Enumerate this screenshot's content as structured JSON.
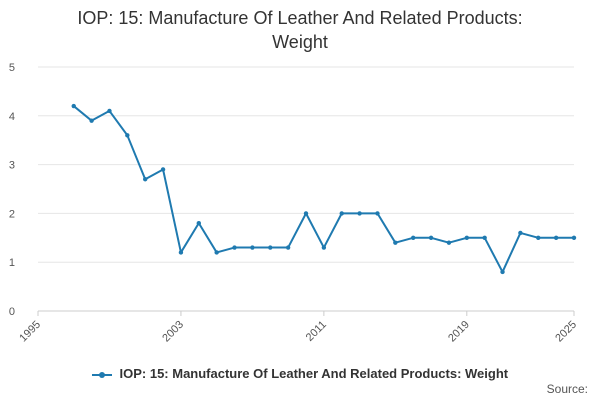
{
  "chart_data": {
    "type": "line",
    "title_lines": [
      "IOP: 15: Manufacture Of Leather And Related Products:",
      "Weight"
    ],
    "xlabel": "",
    "ylabel": "",
    "xlim": [
      1995,
      2025
    ],
    "ylim": [
      0,
      5
    ],
    "x_ticks": [
      "1995",
      "2003",
      "2011",
      "2019",
      "2025"
    ],
    "y_ticks": [
      "0",
      "1",
      "2",
      "3",
      "4",
      "5"
    ],
    "grid": true,
    "legend_position": "bottom",
    "series": [
      {
        "name": "IOP: 15: Manufacture Of Leather And Related Products: Weight",
        "color": "#1f7ab0",
        "x": [
          1997,
          1998,
          1999,
          2000,
          2001,
          2002,
          2003,
          2004,
          2005,
          2006,
          2007,
          2008,
          2009,
          2010,
          2011,
          2012,
          2013,
          2014,
          2015,
          2016,
          2017,
          2018,
          2019,
          2020,
          2021,
          2022,
          2023,
          2024,
          2025
        ],
        "values": [
          4.2,
          3.9,
          4.1,
          3.6,
          2.7,
          2.9,
          1.2,
          1.8,
          1.2,
          1.3,
          1.3,
          1.3,
          1.3,
          2.0,
          1.3,
          2.0,
          2.0,
          2.0,
          1.4,
          1.5,
          1.5,
          1.4,
          1.5,
          1.5,
          0.8,
          1.6,
          1.5,
          1.5,
          1.5
        ]
      }
    ]
  },
  "legend": {
    "label": "IOP: 15: Manufacture Of Leather And Related Products: Weight"
  },
  "footer": {
    "source_label": "Source:"
  }
}
